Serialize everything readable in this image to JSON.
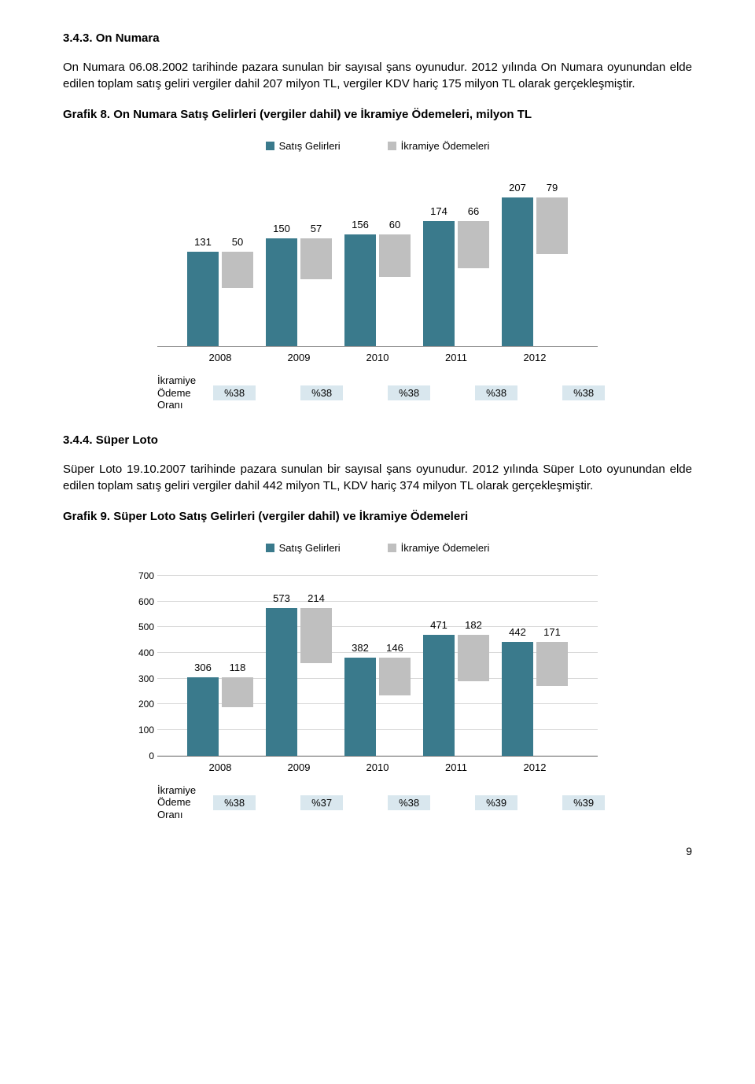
{
  "section1": {
    "heading": "3.4.3.  On Numara",
    "para": "On Numara 06.08.2002 tarihinde pazara sunulan bir sayısal şans oyunudur. 2012 yılında On Numara oyunundan elde edilen toplam satış geliri vergiler dahil 207 milyon TL, vergiler KDV hariç 175 milyon TL olarak gerçekleşmiştir.",
    "caption": "Grafik 8. On Numara Satış Gelirleri (vergiler dahil) ve İkramiye Ödemeleri, milyon TL"
  },
  "legend": {
    "series1": "Satış Gelirleri",
    "series2": "İkramiye Ödemeleri"
  },
  "colors": {
    "series1": "#3a7a8c",
    "series2": "#bfbfbf",
    "badge_bg": "#d9e7ee",
    "text": "#000000"
  },
  "chart1": {
    "ymax": 240,
    "years": [
      "2008",
      "2009",
      "2010",
      "2011",
      "2012"
    ],
    "series1": [
      131,
      150,
      156,
      174,
      207
    ],
    "series2": [
      50,
      57,
      60,
      66,
      79
    ],
    "ratio_label": "İkramiye\nÖdeme\nOranı",
    "ratios": [
      "%38",
      "%38",
      "%38",
      "%38",
      "%38"
    ]
  },
  "section2": {
    "heading": "3.4.4.  Süper Loto",
    "para": "Süper Loto 19.10.2007 tarihinde pazara sunulan bir sayısal şans oyunudur. 2012 yılında Süper Loto oyunundan elde edilen toplam satış geliri vergiler dahil 442 milyon TL, KDV hariç 374 milyon TL olarak gerçekleşmiştir.",
    "caption": "Grafik 9.  Süper Loto Satış Gelirleri (vergiler dahil) ve İkramiye Ödemeleri"
  },
  "chart2": {
    "ymax": 700,
    "yticks": [
      0,
      100,
      200,
      300,
      400,
      500,
      600,
      700
    ],
    "years": [
      "2008",
      "2009",
      "2010",
      "2011",
      "2012"
    ],
    "series1": [
      306,
      573,
      382,
      471,
      442
    ],
    "series2": [
      118,
      214,
      146,
      182,
      171
    ],
    "ratio_label": "İkramiye\nÖdeme\nOranı",
    "ratios": [
      "%38",
      "%37",
      "%38",
      "%39",
      "%39"
    ]
  },
  "page_no": "9"
}
